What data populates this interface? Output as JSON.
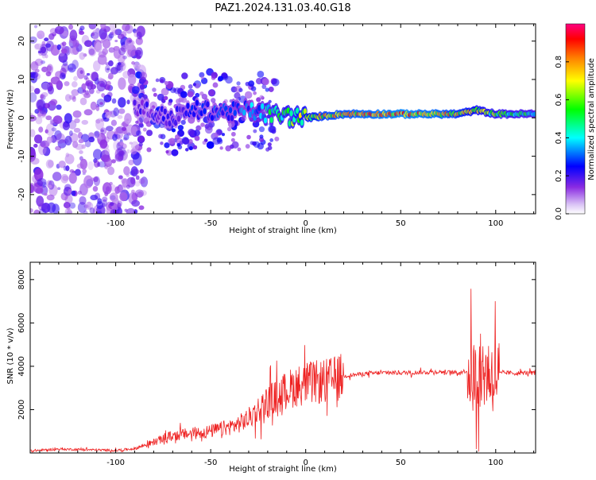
{
  "page_title": "PAZ1.2024.131.03.40.G18",
  "chart_data": [
    {
      "type": "heatmap",
      "name": "spectrogram",
      "xlabel": "Height of straight line (km)",
      "ylabel": "Frequency (Hz)",
      "xlim": [
        -145,
        121
      ],
      "ylim": [
        -25,
        24.5
      ],
      "xticks": [
        -100,
        -50,
        0,
        50,
        100
      ],
      "yticks": [
        -20,
        -10,
        0,
        10,
        20
      ],
      "colorbar": {
        "label": "Normalized spectral amplitude",
        "range": [
          0,
          1
        ],
        "ticks": [
          0.0,
          0.2,
          0.4,
          0.6,
          0.8
        ],
        "tick_labels": [
          "0.0",
          "0.2",
          "0.4",
          "0.6",
          "0.8"
        ],
        "colors": [
          "#ffffff",
          "#8a2be2",
          "#0000ff",
          "#00ffff",
          "#00ff00",
          "#ffff00",
          "#ff8000",
          "#ff0000",
          "#ff0080"
        ]
      },
      "ridge": {
        "frequency_hz": [
          [
            -88,
            3
          ],
          [
            -80,
            1
          ],
          [
            -70,
            0
          ],
          [
            -60,
            2
          ],
          [
            -50,
            2
          ],
          [
            -40,
            1.5
          ],
          [
            -30,
            2
          ],
          [
            -20,
            1
          ],
          [
            -10,
            0.5
          ],
          [
            0,
            0
          ],
          [
            20,
            1
          ],
          [
            40,
            1
          ],
          [
            60,
            1
          ],
          [
            80,
            1
          ],
          [
            90,
            2
          ],
          [
            100,
            1
          ],
          [
            121,
            1
          ]
        ],
        "amplitude": [
          [
            -88,
            0.2
          ],
          [
            -70,
            0.25
          ],
          [
            -50,
            0.3
          ],
          [
            -30,
            0.35
          ],
          [
            -15,
            0.55
          ],
          [
            0,
            0.7
          ],
          [
            10,
            0.8
          ],
          [
            30,
            0.85
          ],
          [
            50,
            0.9
          ],
          [
            70,
            0.85
          ],
          [
            90,
            0.7
          ],
          [
            100,
            0.6
          ],
          [
            121,
            0.5
          ]
        ]
      },
      "colors": {
        "axis": "#000000"
      }
    },
    {
      "type": "line",
      "name": "snr",
      "xlabel": "Height of straight line (km)",
      "ylabel": "SNR (10 * v/v)",
      "xlim": [
        -145,
        121
      ],
      "ylim": [
        0,
        8800
      ],
      "xticks": [
        -100,
        -50,
        0,
        50,
        100
      ],
      "yticks": [
        2000,
        4000,
        6000,
        8000
      ],
      "series": [
        {
          "color": "#ee2222",
          "x": [
            -145,
            -130,
            -115,
            -100,
            -90,
            -85,
            -80,
            -75,
            -70,
            -65,
            -60,
            -55,
            -50,
            -45,
            -40,
            -35,
            -30,
            -25,
            -20,
            -15,
            -10,
            -5,
            0,
            5,
            10,
            15,
            20,
            25,
            30,
            40,
            50,
            60,
            70,
            80,
            85,
            88,
            90,
            92,
            94,
            96,
            98,
            100,
            105,
            110,
            115,
            121
          ],
          "y": [
            100,
            180,
            150,
            120,
            200,
            350,
            500,
            650,
            800,
            850,
            900,
            950,
            1000,
            1100,
            1200,
            1350,
            1600,
            2000,
            2400,
            2600,
            2900,
            3100,
            3200,
            3250,
            3300,
            3400,
            3550,
            3600,
            3650,
            3700,
            3700,
            3720,
            3750,
            3700,
            3800,
            3500,
            3600,
            3700,
            3800,
            3700,
            3600,
            3650,
            3700,
            3680,
            3700,
            3700
          ]
        }
      ]
    }
  ]
}
